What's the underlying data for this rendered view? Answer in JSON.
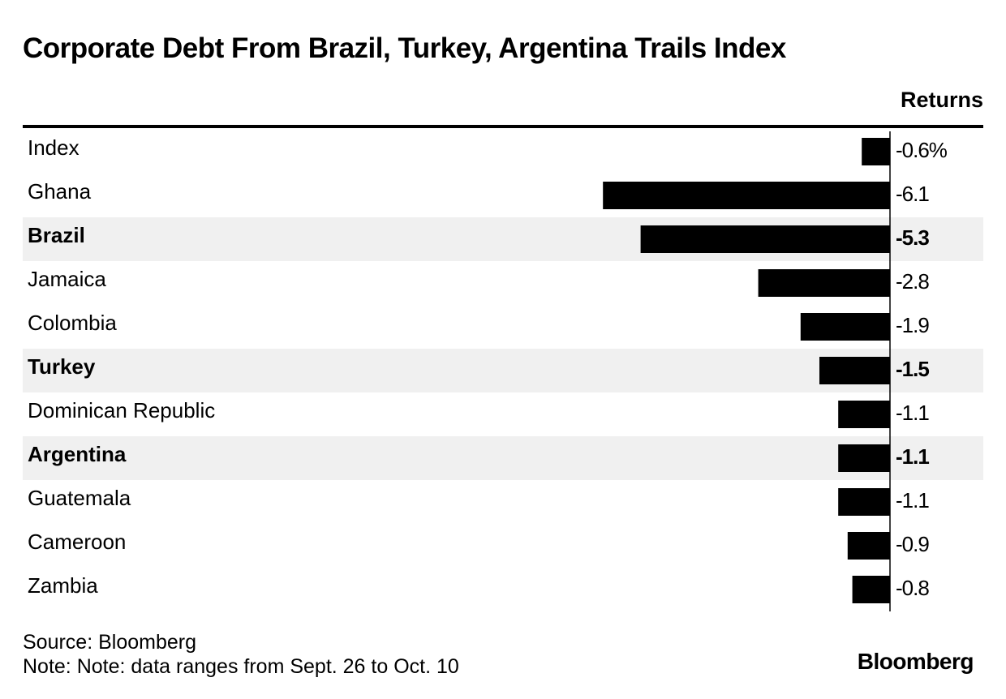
{
  "chart_data": {
    "type": "bar",
    "orientation": "horizontal",
    "title": "Corporate Debt From Brazil, Turkey, Argentina Trails Index",
    "value_header": "Returns",
    "categories": [
      "Index",
      "Ghana",
      "Brazil",
      "Jamaica",
      "Colombia",
      "Turkey",
      "Dominican Republic",
      "Argentina",
      "Guatemala",
      "Cameroon",
      "Zambia"
    ],
    "values": [
      -0.6,
      -6.1,
      -5.3,
      -2.8,
      -1.9,
      -1.5,
      -1.1,
      -1.1,
      -1.1,
      -0.9,
      -0.8
    ],
    "value_labels": [
      "-0.6%",
      "-6.1",
      "-5.3",
      "-2.8",
      "-1.9",
      "-1.5",
      "-1.1",
      "-1.1",
      "-1.1",
      "-0.9",
      "-0.8"
    ],
    "highlighted": [
      "Brazil",
      "Turkey",
      "Argentina"
    ],
    "bar_color": "#000000",
    "highlight_row_color": "#f0f0f0"
  },
  "footer": {
    "source": "Source: Bloomberg",
    "note": "Note: Note: data ranges from Sept. 26 to Oct. 10",
    "brand": "Bloomberg"
  }
}
